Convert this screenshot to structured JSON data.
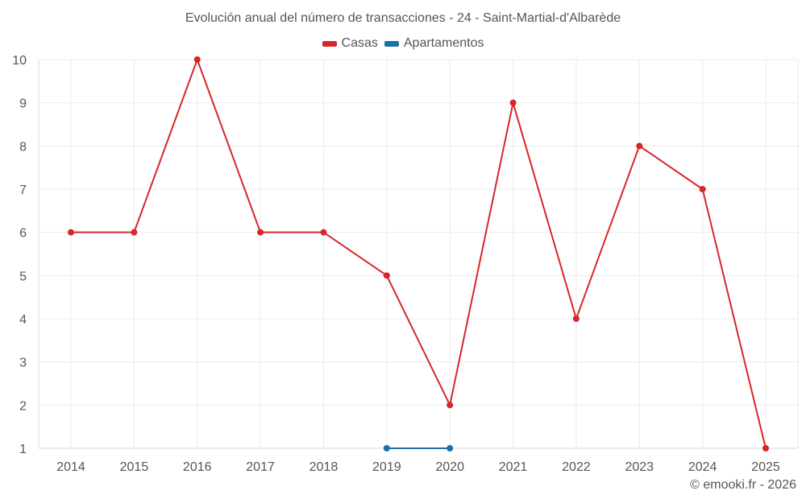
{
  "chart_data": {
    "type": "line",
    "title": "Evolución anual del número de transacciones - 24 - Saint-Martial-d'Albarède",
    "categories": [
      "2014",
      "2015",
      "2016",
      "2017",
      "2018",
      "2019",
      "2020",
      "2021",
      "2022",
      "2023",
      "2024",
      "2025"
    ],
    "series": [
      {
        "name": "Casas",
        "color": "#d62728",
        "values": [
          6,
          6,
          10,
          6,
          6,
          5,
          2,
          9,
          4,
          8,
          7,
          1
        ]
      },
      {
        "name": "Apartamentos",
        "color": "#1f6ea3",
        "values": [
          null,
          null,
          null,
          null,
          null,
          1,
          1,
          null,
          null,
          null,
          null,
          null
        ]
      }
    ],
    "ylim": [
      1,
      10
    ],
    "yticks": [
      "1",
      "2",
      "3",
      "4",
      "5",
      "6",
      "7",
      "8",
      "9",
      "10"
    ],
    "grid": true,
    "legend_position": "top-center"
  },
  "credit": "© emooki.fr - 2026"
}
